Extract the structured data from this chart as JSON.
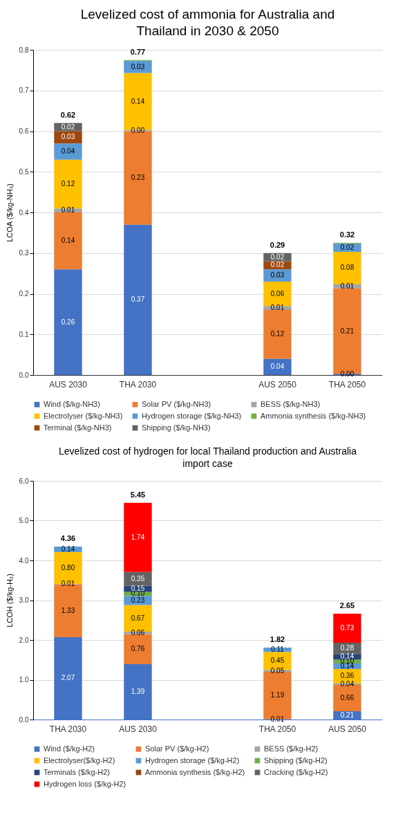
{
  "chart_data": [
    {
      "type": "bar",
      "stacked": true,
      "title": "Levelized cost of ammonia for Australia and\nThailand in 2030 & 2050",
      "ylabel": "LCOA ($/kg-NH₃)",
      "categories": [
        "AUS 2030",
        "THA 2030",
        null,
        "AUS 2050",
        "THA 2050"
      ],
      "ylim": [
        0,
        0.8
      ],
      "yticks": [
        {
          "value": 0,
          "label": "0.0"
        },
        0.1,
        0.2,
        0.3,
        0.4,
        0.5,
        0.6,
        0.7,
        0.8
      ],
      "grid": "y",
      "legend": "bottom",
      "totals": [
        "0.62",
        "0.77",
        null,
        "0.29",
        "0.32"
      ],
      "series": [
        {
          "name": "Wind ($/kg-NH3)",
          "color": "#4472c4",
          "values": [
            0.26,
            0.37,
            null,
            0.04,
            0.003
          ],
          "value_labels": [
            "0.26",
            "0.37",
            null,
            "0.04",
            "0.00"
          ]
        },
        {
          "name": "Solar PV ($/kg-NH3)",
          "color": "#ed7d31",
          "values": [
            0.14,
            0.23,
            null,
            0.12,
            0.21
          ],
          "value_labels": [
            "0.14",
            "0.23",
            null,
            "0.12",
            "0.21"
          ]
        },
        {
          "name": "BESS ($/kg-NH3)",
          "color": "#a5a5a5",
          "values": [
            0.01,
            0.003,
            null,
            0.01,
            0.01
          ],
          "value_labels": [
            "0.01",
            "0.00",
            null,
            "0.01",
            "0.01"
          ]
        },
        {
          "name": "Electrolyser ($/kg-NH3)",
          "color": "#ffc000",
          "values": [
            0.12,
            0.14,
            null,
            0.06,
            0.08
          ],
          "value_labels": [
            "0.12",
            "0.14",
            null,
            "0.06",
            "0.08"
          ]
        },
        {
          "name": "Hydrogen storage ($/kg-NH3)",
          "color": "#5b9bd5",
          "values": [
            0.04,
            0.03,
            null,
            0.03,
            0.02
          ],
          "value_labels": [
            "0.04",
            "0.03",
            null,
            "0.03",
            "0.02"
          ]
        },
        {
          "name": "Ammonia synthesis ($/kg-NH3)",
          "color": "#70ad47",
          "values": [
            null,
            0.002,
            null,
            null,
            0.002
          ]
        },
        {
          "name": "Terminal ($/kg-NH3)",
          "color": "#9e480e",
          "values": [
            0.03,
            null,
            null,
            0.02,
            null
          ],
          "value_labels": [
            "0.03",
            null,
            null,
            "0.02",
            null
          ]
        },
        {
          "name": "Shipping ($/kg-NH3)",
          "color": "#636363",
          "values": [
            0.02,
            null,
            null,
            0.02,
            null
          ],
          "value_labels": [
            "0.02",
            null,
            null,
            "0.02",
            null
          ]
        }
      ]
    },
    {
      "type": "bar",
      "stacked": true,
      "title": "Levelized cost of hydrogen for local Thailand production and Australia\nimport case",
      "ylabel": "LCOH ($/kg-H₂)",
      "categories": [
        "THA 2030",
        "AUS 2030",
        null,
        "THA 2050",
        "AUS 2050"
      ],
      "ylim": [
        0,
        6
      ],
      "yticks": [
        {
          "value": 0,
          "label": "0.0"
        },
        {
          "value": 1,
          "label": "1.0"
        },
        {
          "value": 2,
          "label": "2.0"
        },
        {
          "value": 3,
          "label": "3.0"
        },
        {
          "value": 4,
          "label": "4.0"
        },
        {
          "value": 5,
          "label": "5.0"
        },
        {
          "value": 6,
          "label": "6.0"
        }
      ],
      "grid": "y",
      "legend": "bottom",
      "totals": [
        "4.36",
        "5.45",
        null,
        "1.82",
        "2.65"
      ],
      "series": [
        {
          "name": "Wind ($/kg-H2)",
          "color": "#4472c4",
          "values": [
            2.07,
            1.39,
            null,
            0.01,
            0.21
          ],
          "value_labels": [
            "2.07",
            "1.39",
            null,
            "0.01",
            "0.21"
          ]
        },
        {
          "name": "Solar PV ($/kg-H2)",
          "color": "#ed7d31",
          "values": [
            1.33,
            0.76,
            null,
            1.19,
            0.66
          ],
          "value_labels": [
            "1.33",
            "0.76",
            null,
            "1.19",
            "0.66"
          ]
        },
        {
          "name": "BESS ($/kg-H2)",
          "color": "#a5a5a5",
          "values": [
            0.01,
            0.06,
            null,
            0.05,
            0.04
          ],
          "value_labels": [
            "0.01",
            "0.06",
            null,
            "0.05",
            "0.04"
          ]
        },
        {
          "name": "Electrolyser($/kg-H2)",
          "color": "#ffc000",
          "values": [
            0.8,
            0.67,
            null,
            0.45,
            0.36
          ],
          "value_labels": [
            "0.80",
            "0.67",
            null,
            "0.45",
            "0.36"
          ]
        },
        {
          "name": "Hydrogen storage ($/kg-H2)",
          "color": "#5b9bd5",
          "values": [
            0.14,
            0.23,
            null,
            0.11,
            0.14
          ],
          "value_labels": [
            "0.14",
            "0.23",
            null,
            "0.11",
            "0.14"
          ]
        },
        {
          "name": "Shipping ($/kg-H2)",
          "color": "#70ad47",
          "values": [
            null,
            0.1,
            null,
            null,
            0.1
          ],
          "value_labels": [
            null,
            "0.10",
            null,
            null,
            "0.10"
          ]
        },
        {
          "name": "Terminals ($/kg-H2)",
          "color": "#264478",
          "values": [
            null,
            0.15,
            null,
            null,
            0.14
          ],
          "value_labels": [
            null,
            "0.15",
            null,
            null,
            "0.14"
          ]
        },
        {
          "name": "Ammonia synthesis ($/kg-H2)",
          "color": "#9e480e",
          "values": [
            null,
            null,
            null,
            null,
            null
          ]
        },
        {
          "name": "Cracking ($/kg-H2)",
          "color": "#636363",
          "values": [
            null,
            0.35,
            null,
            null,
            0.28
          ],
          "value_labels": [
            null,
            "0.35",
            null,
            null,
            "0.28"
          ]
        },
        {
          "name": "Hydrogen loss ($/kg-H2)",
          "color": "#ff0000",
          "values": [
            null,
            1.74,
            null,
            null,
            0.73
          ],
          "value_labels": [
            null,
            "1.74",
            null,
            null,
            "0.73"
          ]
        }
      ]
    }
  ]
}
